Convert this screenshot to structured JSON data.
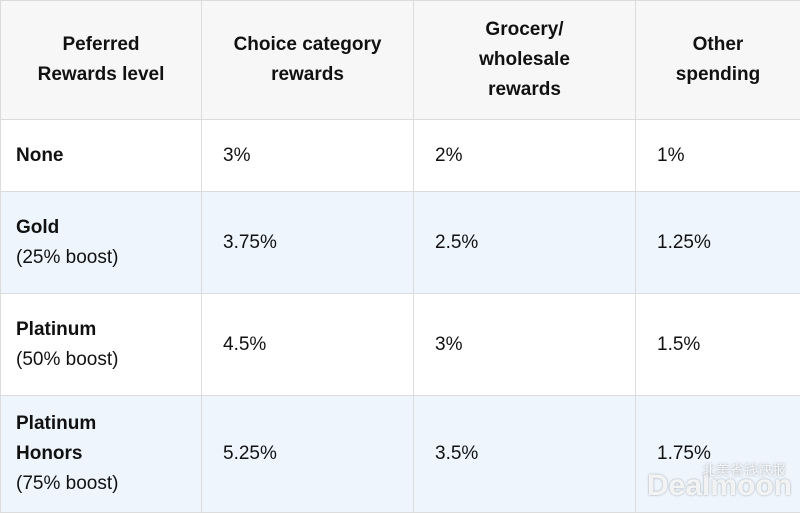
{
  "table": {
    "header": [
      [
        "Peferred",
        "Rewards level"
      ],
      [
        "Choice category",
        "rewards"
      ],
      [
        "Grocery/",
        "wholesale",
        "rewards"
      ],
      [
        "Other",
        "spending"
      ]
    ],
    "rows": [
      {
        "level": [
          "None"
        ],
        "rates": [
          "3%",
          "2%",
          "1%"
        ]
      },
      {
        "level": [
          "Gold",
          "(25% boost)"
        ],
        "rates": [
          "3.75%",
          "2.5%",
          "1.25%"
        ]
      },
      {
        "level": [
          "Platinum",
          "(50% boost)"
        ],
        "rates": [
          "4.5%",
          "3%",
          "1.5%"
        ]
      },
      {
        "level": [
          "Platinum Honors",
          "(75% boost)"
        ],
        "rates": [
          "5.25%",
          "3.5%",
          "1.75%"
        ]
      }
    ]
  },
  "watermark": {
    "brand": "Dealmoon",
    "tagline": "北美省钱快报"
  }
}
